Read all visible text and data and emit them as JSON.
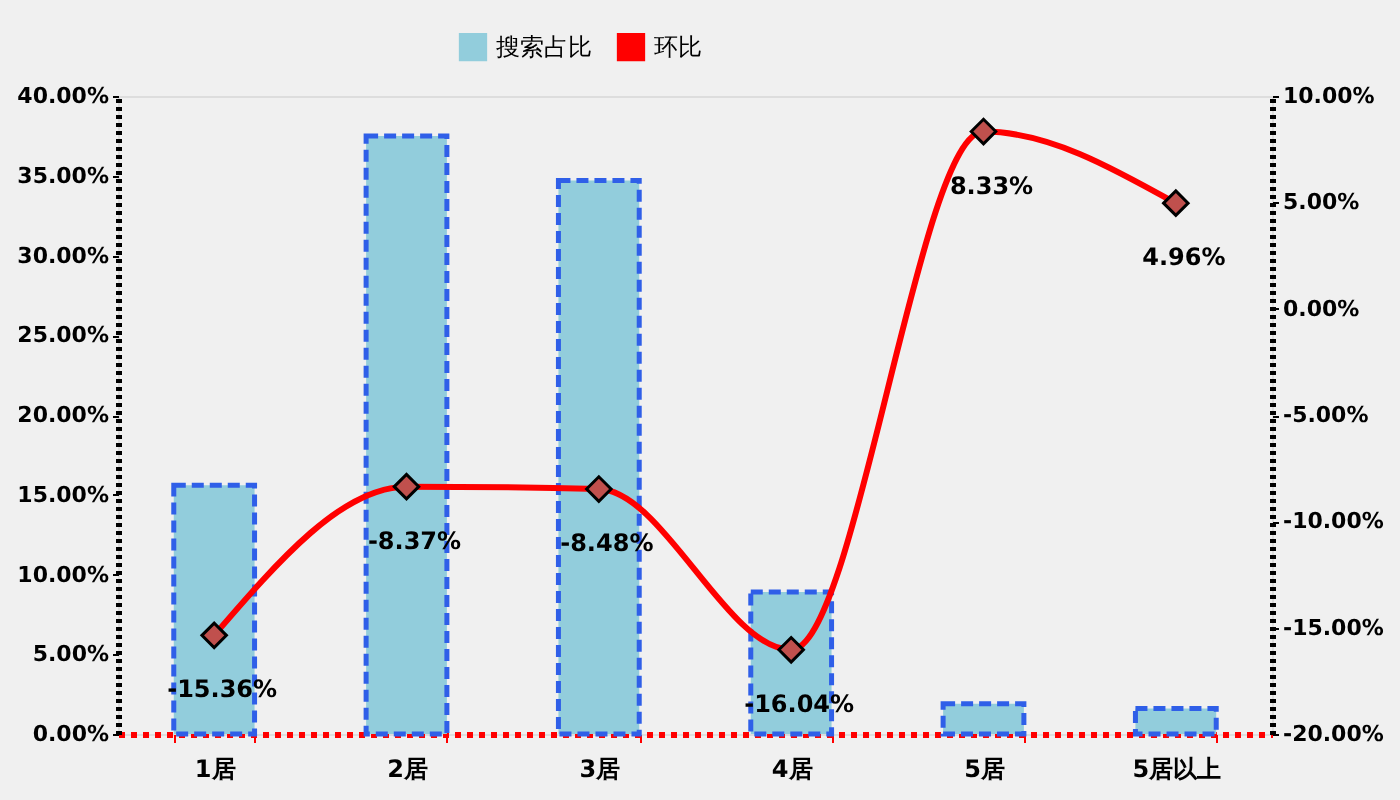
{
  "chart_data": {
    "type": "bar",
    "categories": [
      "1居",
      "2居",
      "3居",
      "4居",
      "5居",
      "5居以上"
    ],
    "series": [
      {
        "name": "搜索占比",
        "color": "#92cddc",
        "values": [
          15.6,
          37.5,
          34.7,
          8.9,
          1.9,
          1.6
        ]
      },
      {
        "name": "环比",
        "type": "line",
        "axis": "y2",
        "color": "#ff0000",
        "values": [
          -15.36,
          -8.37,
          -8.48,
          -16.04,
          8.33,
          4.96
        ],
        "value_labels": [
          "-15.36%",
          "-8.37%",
          "-8.48%",
          "-16.04%",
          "8.33%",
          "4.96%"
        ]
      }
    ],
    "ylim": [
      0,
      40
    ],
    "yticks": [
      {
        "value": 0,
        "label": "0.00%"
      },
      {
        "value": 5,
        "label": "5.00%"
      },
      {
        "value": 10,
        "label": "10.00%"
      },
      {
        "value": 15,
        "label": "15.00%"
      },
      {
        "value": 20,
        "label": "20.00%"
      },
      {
        "value": 25,
        "label": "25.00%"
      },
      {
        "value": 30,
        "label": "30.00%"
      },
      {
        "value": 35,
        "label": "35.00%"
      },
      {
        "value": 40,
        "label": "40.00%"
      }
    ],
    "y2lim": [
      -20,
      10
    ],
    "y2ticks": [
      {
        "value": -20,
        "label": "-20.00%"
      },
      {
        "value": -15,
        "label": "-15.00%"
      },
      {
        "value": -10,
        "label": "-10.00%"
      },
      {
        "value": -5,
        "label": "-5.00%"
      },
      {
        "value": 0,
        "label": "0.00%"
      },
      {
        "value": 5,
        "label": "5.00%"
      },
      {
        "value": 10,
        "label": "10.00%"
      }
    ],
    "legend": "top",
    "marker": "diamond"
  }
}
